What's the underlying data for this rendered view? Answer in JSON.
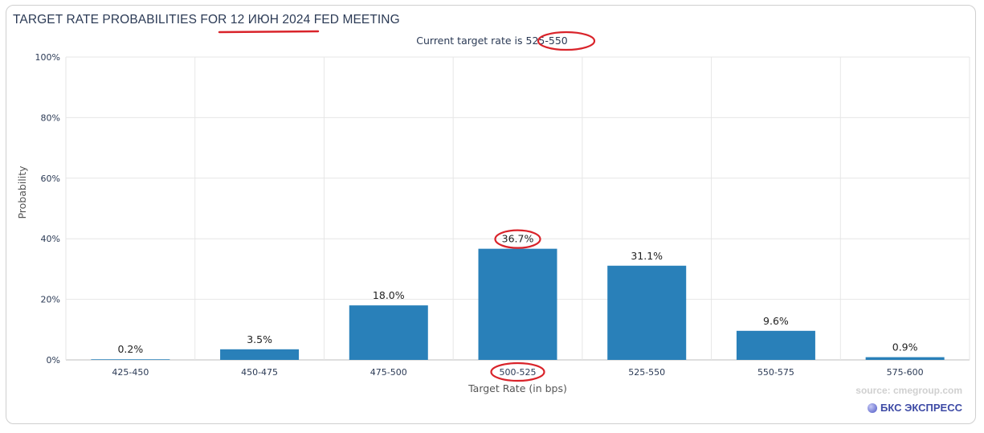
{
  "chart_title": {
    "prefix": "TARGET RATE PROBABILITIES FOR",
    "date": "12 ИЮН 2024",
    "suffix": "FED MEETING"
  },
  "subtitle": {
    "label": "Current target rate is",
    "value": "525-550"
  },
  "footer": {
    "source": "source: cmegroup.com",
    "brand": "БКС ЭКСПРЕСС"
  },
  "colors": {
    "bar": "#2980b9",
    "annotation": "#d9232a",
    "grid": "#e6e6e6",
    "text": "#2b3a55"
  },
  "chart_data": {
    "type": "bar",
    "title": "TARGET RATE PROBABILITIES FOR 12 ИЮН 2024 FED MEETING",
    "subtitle": "Current target rate is 525-550",
    "categories": [
      "425-450",
      "450-475",
      "475-500",
      "500-525",
      "525-550",
      "550-575",
      "575-600"
    ],
    "values": [
      0.2,
      3.5,
      18.0,
      36.7,
      31.1,
      9.6,
      0.9
    ],
    "data_labels": [
      "0.2%",
      "3.5%",
      "18.0%",
      "36.7%",
      "31.1%",
      "9.6%",
      "0.9%"
    ],
    "xlabel": "Target Rate (in bps)",
    "ylabel": "Probability",
    "ylim": [
      0,
      100
    ],
    "yticks": [
      0,
      20,
      40,
      60,
      80,
      100
    ],
    "ytick_labels": [
      "0%",
      "20%",
      "40%",
      "60%",
      "80%",
      "100%"
    ],
    "grid": true,
    "legend": "none",
    "highlighted": {
      "data_label_index": 3,
      "category_index": 3
    }
  }
}
